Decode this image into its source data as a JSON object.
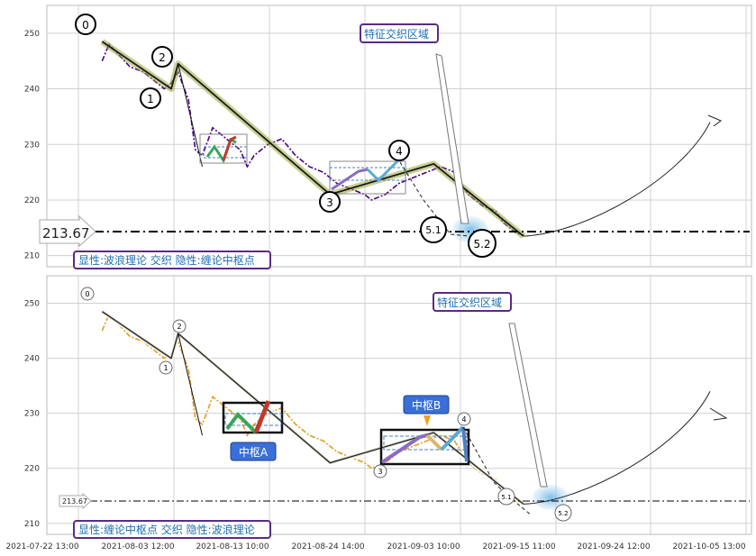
{
  "chart_data": [
    {
      "type": "line",
      "panel": "top",
      "ylim": [
        208,
        255
      ],
      "yticks": [
        210,
        220,
        230,
        240,
        250
      ],
      "grid": true,
      "series": [
        {
          "role": "price",
          "color": "#4b0082",
          "style": "dash-dot",
          "values": [
            [
              0,
              245
            ],
            [
              1,
              248
            ],
            [
              2.5,
              246
            ],
            [
              4,
              244
            ],
            [
              6,
              243
            ],
            [
              8,
              241
            ],
            [
              9,
              240
            ],
            [
              10,
              241
            ],
            [
              11,
              243
            ],
            [
              12.5,
              238
            ],
            [
              13.5,
              229
            ],
            [
              14.5,
              228
            ],
            [
              16,
              233
            ],
            [
              18,
              231
            ],
            [
              20,
              229
            ],
            [
              21,
              226
            ],
            [
              22,
              228
            ],
            [
              24,
              230
            ],
            [
              26,
              231
            ],
            [
              28,
              228
            ],
            [
              30,
              226
            ],
            [
              32,
              225
            ],
            [
              34,
              223
            ],
            [
              36,
              222
            ],
            [
              38,
              221
            ],
            [
              39,
              220
            ],
            [
              41,
              221
            ],
            [
              43,
              223
            ],
            [
              45,
              224
            ],
            [
              47,
              225
            ],
            [
              49,
              226
            ],
            [
              51,
              225
            ],
            [
              52,
              223
            ],
            [
              53,
              221
            ],
            [
              55,
              219
            ],
            [
              57,
              218
            ],
            [
              58,
              216
            ],
            [
              59,
              215
            ],
            [
              60,
              214
            ],
            [
              61,
              213.7
            ]
          ]
        },
        {
          "role": "wave",
          "color": "#1a1a1a",
          "values": [
            [
              0,
              248.5
            ],
            [
              10,
              240
            ],
            [
              11,
              244.5
            ],
            [
              33,
              221
            ],
            [
              48,
              226.5
            ],
            [
              61,
              213.5
            ]
          ]
        },
        {
          "role": "projection",
          "color": "#222222",
          "values": [
            [
              61,
              213.5
            ],
            [
              70,
              214
            ],
            [
              78,
              217
            ],
            [
              84,
              224
            ],
            [
              88,
              234
            ]
          ]
        }
      ],
      "wave_labels": [
        "0",
        "1",
        "2",
        "3",
        "4",
        "5.1",
        "5.2"
      ],
      "horizontal_line": {
        "value": 213.67,
        "label": "213.67"
      },
      "annotation": "特征交织区域",
      "caption": "显性:波浪理论 交织 隐性:缠论中枢点",
      "xticks": []
    },
    {
      "type": "line",
      "panel": "bottom",
      "ylim": [
        208,
        255
      ],
      "yticks": [
        210,
        220,
        230,
        240,
        250
      ],
      "grid": true,
      "series": [
        {
          "role": "price",
          "color": "#e69b1e",
          "style": "dash-dot",
          "values": [
            [
              0,
              245
            ],
            [
              1,
              248
            ],
            [
              2.5,
              246
            ],
            [
              4,
              244
            ],
            [
              6,
              243
            ],
            [
              8,
              241
            ],
            [
              9,
              240
            ],
            [
              10,
              241
            ],
            [
              11,
              243
            ],
            [
              12.5,
              238
            ],
            [
              13.5,
              229
            ],
            [
              14.5,
              228
            ],
            [
              16,
              233
            ],
            [
              18,
              231
            ],
            [
              20,
              229
            ],
            [
              21,
              226
            ],
            [
              22,
              228
            ],
            [
              24,
              230
            ],
            [
              26,
              231
            ],
            [
              28,
              228
            ],
            [
              30,
              226
            ],
            [
              32,
              225
            ],
            [
              34,
              223
            ],
            [
              36,
              222
            ],
            [
              38,
              221
            ],
            [
              39,
              220
            ],
            [
              41,
              221
            ],
            [
              43,
              223
            ],
            [
              45,
              224
            ],
            [
              47,
              225
            ],
            [
              49,
              226
            ],
            [
              51,
              225
            ],
            [
              52,
              223
            ],
            [
              53,
              221
            ],
            [
              55,
              219
            ],
            [
              57,
              218
            ],
            [
              58,
              216
            ],
            [
              59,
              215
            ],
            [
              60,
              214
            ],
            [
              61,
              213.7
            ]
          ]
        },
        {
          "role": "wave",
          "color": "#1a1a1a",
          "values": [
            [
              0,
              248.5
            ],
            [
              10,
              240
            ],
            [
              11,
              244.5
            ],
            [
              33,
              221
            ],
            [
              48,
              226.5
            ],
            [
              61,
              213.5
            ]
          ]
        },
        {
          "role": "projection",
          "color": "#222222",
          "values": [
            [
              61,
              213.5
            ],
            [
              70,
              214
            ],
            [
              78,
              217
            ],
            [
              84,
              224
            ],
            [
              88,
              234
            ]
          ]
        }
      ],
      "wave_labels": [
        "0",
        "1",
        "2",
        "3",
        "4",
        "5.1",
        "5.2"
      ],
      "horizontal_line": {
        "value": 213.67,
        "label": "213.67"
      },
      "annotation": "特征交织区域",
      "hub_labels": [
        "中枢A",
        "中枢B"
      ],
      "caption": "显性:缠论中枢点 交织 隐性:波浪理论",
      "xticks": [
        "2021-07-22 13:00",
        "2021-08-03 12:00",
        "2021-08-13 10:00",
        "2021-08-24 14:00",
        "2021-09-03 10:00",
        "2021-09-15 11:00",
        "2021-09-24 12:00",
        "2021-10-05 13:00"
      ]
    }
  ],
  "colors": {
    "grid": "#d0d0d0",
    "wave_highlight": "#9aaa3c",
    "hub_green": "#3aa55b",
    "hub_red": "#c0392b",
    "hub_blue": "#4a7fc1",
    "hub_purple": "#8a6cc0",
    "hub_light_blue": "#5aa9d6",
    "hub_tan": "#d9b56b",
    "caption_border": "#5a2a8a",
    "pill_fill": "#3a6fd8",
    "glow": "#9fd0ef",
    "hub_arrow": "#f0a020"
  }
}
